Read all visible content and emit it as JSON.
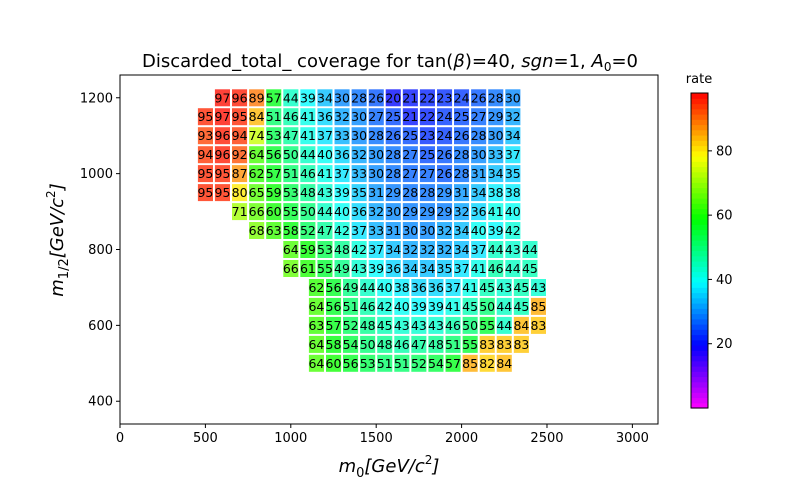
{
  "chart_data": {
    "type": "heatmap",
    "title": "Discarded_total_ coverage for tan(β)=40, sgn=1, A₀=0",
    "title_parts": {
      "prefix": "Discarded_total_ coverage for tan(",
      "beta": "β",
      "mid1": ")=40, ",
      "sgn": "sgn",
      "mid2": "=1, ",
      "a": "A",
      "a_sub": "0",
      "suffix": "=0"
    },
    "xlabel": "m0[GeV/c2]",
    "xlabel_parts": {
      "m": "m",
      "sub": "0",
      "body": "[GeV/c",
      "sup": "2",
      "end": "]"
    },
    "ylabel": "m1/2[GeV/c2]",
    "ylabel_parts": {
      "m": "m",
      "sub": "1/2",
      "body": "[GeV/c",
      "sup": "2",
      "end": "]"
    },
    "xlim": [
      0,
      3150
    ],
    "ylim": [
      340,
      1260
    ],
    "xticks": [
      0,
      500,
      1000,
      1500,
      2000,
      2500,
      3000
    ],
    "yticks": [
      400,
      600,
      800,
      1000,
      1200
    ],
    "colorbar": {
      "label": "rate",
      "min": 0,
      "max": 98,
      "ticks": [
        20,
        40,
        60,
        80
      ],
      "colormap": "gist_rainbow_r"
    },
    "grid": false,
    "cell_width": 100,
    "cell_height": 50,
    "rows": [
      {
        "y": 1200,
        "x_start": 600,
        "values": [
          97,
          96,
          89,
          57,
          44,
          39,
          34,
          30,
          28,
          26,
          20,
          21,
          22,
          23,
          24,
          26,
          28,
          30
        ]
      },
      {
        "y": 1150,
        "x_start": 500,
        "values": [
          95,
          97,
          95,
          84,
          51,
          46,
          41,
          36,
          32,
          30,
          27,
          25,
          21,
          22,
          24,
          25,
          27,
          29,
          32
        ]
      },
      {
        "y": 1100,
        "x_start": 500,
        "values": [
          93,
          96,
          94,
          74,
          53,
          47,
          41,
          37,
          33,
          30,
          28,
          26,
          25,
          23,
          24,
          26,
          28,
          30,
          34
        ]
      },
      {
        "y": 1050,
        "x_start": 500,
        "values": [
          94,
          96,
          92,
          64,
          56,
          50,
          44,
          40,
          36,
          32,
          30,
          28,
          27,
          25,
          26,
          28,
          30,
          33,
          37
        ]
      },
      {
        "y": 1000,
        "x_start": 500,
        "values": [
          95,
          95,
          87,
          62,
          57,
          51,
          46,
          41,
          37,
          33,
          30,
          28,
          27,
          27,
          26,
          28,
          31,
          34,
          35
        ]
      },
      {
        "y": 950,
        "x_start": 500,
        "values": [
          95,
          95,
          80,
          65,
          59,
          53,
          48,
          43,
          39,
          35,
          31,
          29,
          28,
          28,
          29,
          31,
          34,
          38,
          38
        ]
      },
      {
        "y": 900,
        "x_start": 700,
        "values": [
          71,
          66,
          60,
          55,
          50,
          44,
          40,
          36,
          32,
          30,
          29,
          29,
          29,
          32,
          36,
          41,
          40
        ]
      },
      {
        "y": 850,
        "x_start": 800,
        "values": [
          68,
          63,
          58,
          52,
          47,
          42,
          37,
          33,
          31,
          30,
          30,
          32,
          34,
          40,
          39,
          42
        ]
      },
      {
        "y": 800,
        "x_start": 1000,
        "values": [
          64,
          59,
          53,
          48,
          42,
          37,
          34,
          32,
          32,
          32,
          34,
          37,
          44,
          43,
          44
        ]
      },
      {
        "y": 750,
        "x_start": 1000,
        "values": [
          66,
          61,
          55,
          49,
          43,
          39,
          36,
          34,
          34,
          35,
          37,
          41,
          46,
          44,
          45
        ]
      },
      {
        "y": 700,
        "x_start": 1150,
        "values": [
          62,
          56,
          49,
          44,
          40,
          38,
          36,
          36,
          37,
          41,
          45,
          43,
          45,
          43
        ]
      },
      {
        "y": 650,
        "x_start": 1150,
        "values": [
          64,
          56,
          51,
          46,
          42,
          40,
          39,
          39,
          41,
          45,
          50,
          44,
          45,
          85
        ]
      },
      {
        "y": 600,
        "x_start": 1150,
        "values": [
          63,
          57,
          52,
          48,
          45,
          43,
          43,
          43,
          46,
          50,
          55,
          44,
          84,
          83
        ]
      },
      {
        "y": 550,
        "x_start": 1150,
        "values": [
          64,
          58,
          54,
          50,
          48,
          46,
          47,
          48,
          51,
          55,
          83,
          83,
          83
        ]
      },
      {
        "y": 500,
        "x_start": 1150,
        "values": [
          64,
          60,
          56,
          53,
          51,
          51,
          52,
          54,
          57,
          85,
          82,
          84
        ]
      }
    ]
  }
}
